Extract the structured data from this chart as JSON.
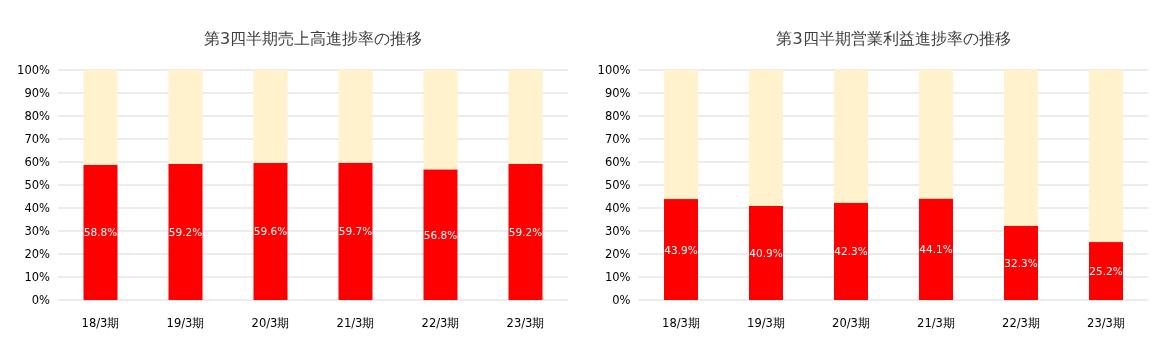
{
  "chart_data": [
    {
      "type": "bar",
      "title": "第3四半期売上高進捗率の推移",
      "categories": [
        "18/3期",
        "19/3期",
        "20/3期",
        "21/3期",
        "22/3期",
        "23/3期"
      ],
      "stacked": true,
      "grid": "y",
      "ylim": [
        0,
        100
      ],
      "yticks": [
        {
          "value": 0,
          "label": "0%"
        },
        {
          "value": 10,
          "label": "10%"
        },
        {
          "value": 20,
          "label": "20%"
        },
        {
          "value": 30,
          "label": "30%"
        },
        {
          "value": 40,
          "label": "40%"
        },
        {
          "value": 50,
          "label": "50%"
        },
        {
          "value": 60,
          "label": "60%"
        },
        {
          "value": 70,
          "label": "70%"
        },
        {
          "value": 80,
          "label": "80%"
        },
        {
          "value": 90,
          "label": "90%"
        },
        {
          "value": 100,
          "label": "100%"
        }
      ],
      "series": [
        {
          "color": "#ff0000",
          "values": [
            58.8,
            59.2,
            59.6,
            59.7,
            56.8,
            59.2
          ],
          "value_labels": [
            "58.8%",
            "59.2%",
            "59.6%",
            "59.7%",
            "56.8%",
            "59.2%"
          ]
        },
        {
          "color": "#fff2cc",
          "values": [
            41.2,
            40.8,
            40.4,
            40.3,
            43.2,
            40.8
          ]
        }
      ]
    },
    {
      "type": "bar",
      "title": "第3四半期営業利益進捗率の推移",
      "categories": [
        "18/3期",
        "19/3期",
        "20/3期",
        "21/3期",
        "22/3期",
        "23/3期"
      ],
      "stacked": true,
      "grid": "y",
      "ylim": [
        0,
        100
      ],
      "yticks": [
        {
          "value": 0,
          "label": "0%"
        },
        {
          "value": 10,
          "label": "10%"
        },
        {
          "value": 20,
          "label": "20%"
        },
        {
          "value": 30,
          "label": "30%"
        },
        {
          "value": 40,
          "label": "40%"
        },
        {
          "value": 50,
          "label": "50%"
        },
        {
          "value": 60,
          "label": "60%"
        },
        {
          "value": 70,
          "label": "70%"
        },
        {
          "value": 80,
          "label": "80%"
        },
        {
          "value": 90,
          "label": "90%"
        },
        {
          "value": 100,
          "label": "100%"
        }
      ],
      "series": [
        {
          "color": "#ff0000",
          "values": [
            43.9,
            40.9,
            42.3,
            44.1,
            32.3,
            25.2
          ],
          "value_labels": [
            "43.9%",
            "40.9%",
            "42.3%",
            "44.1%",
            "32.3%",
            "25.2%"
          ]
        },
        {
          "color": "#fff2cc",
          "values": [
            56.1,
            59.1,
            57.7,
            55.9,
            67.7,
            74.8
          ]
        }
      ]
    }
  ]
}
